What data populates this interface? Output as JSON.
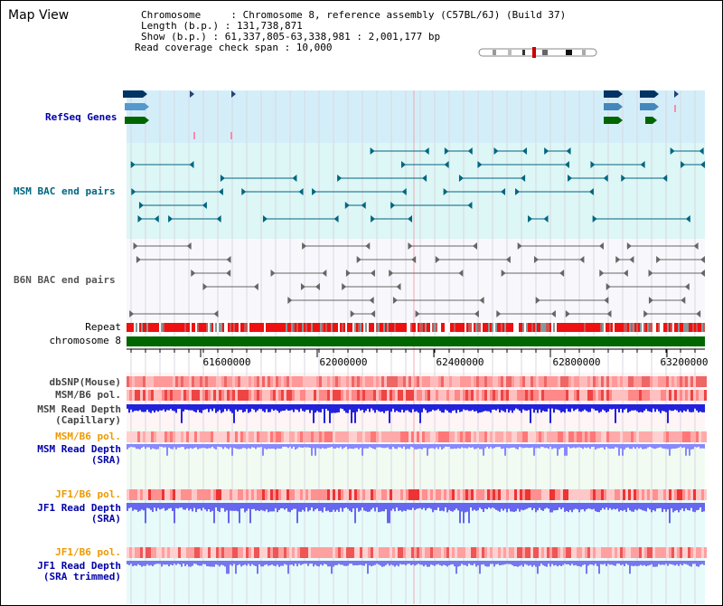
{
  "view": {
    "title": "Map View"
  },
  "info": {
    "chromosome": "Chromosome     : Chromosome 8, reference assembly (C57BL/6J) (Build 37)",
    "length": "Length (b.p.) : 131,738,871",
    "show": "Show (b.p.) : 61,337,805-63,338,981 : 2,001,177 bp",
    "span": "Read coverage check span : 10,000"
  },
  "tracks": {
    "refseq": "RefSeq Genes",
    "msm_bac": "MSM BAC end pairs",
    "b6n_bac": "B6N BAC end pairs",
    "repeat": "Repeat",
    "chrom": "chromosome 8",
    "dbsnp": "dbSNP(Mouse)",
    "msm_pol1": "MSM/B6 pol.",
    "msm_depth_cap1": "MSM Read Depth",
    "msm_depth_cap2": "(Capillary)",
    "msm_pol2": "MSM/B6 pol.",
    "msm_depth_sra1": "MSM Read Depth",
    "msm_depth_sra2": "(SRA)",
    "jf1_pol1": "JF1/B6 pol.",
    "jf1_depth_sra1": "JF1 Read Depth",
    "jf1_depth_sra2": "(SRA)",
    "jf1_pol2": "JF1/B6 pol.",
    "jf1_depth_trim1": "JF1 Read Depth",
    "jf1_depth_trim2": "(SRA trimmed)"
  },
  "axis": {
    "ticks": [
      "61600000",
      "62000000",
      "62400000",
      "62800000",
      "63200000"
    ]
  },
  "colors": {
    "refseq_bg": "#d4eef9",
    "msm_bg": "#ddf6f6",
    "b6n_bg": "#f8f8fc",
    "repeat_red": "#ee1111",
    "chrom_green": "#006600",
    "dark_blue": "#0000aa",
    "teal": "#006680",
    "orange": "#ee9900",
    "depth_blue": "#6666ee",
    "depth_dark": "#1111dd"
  }
}
